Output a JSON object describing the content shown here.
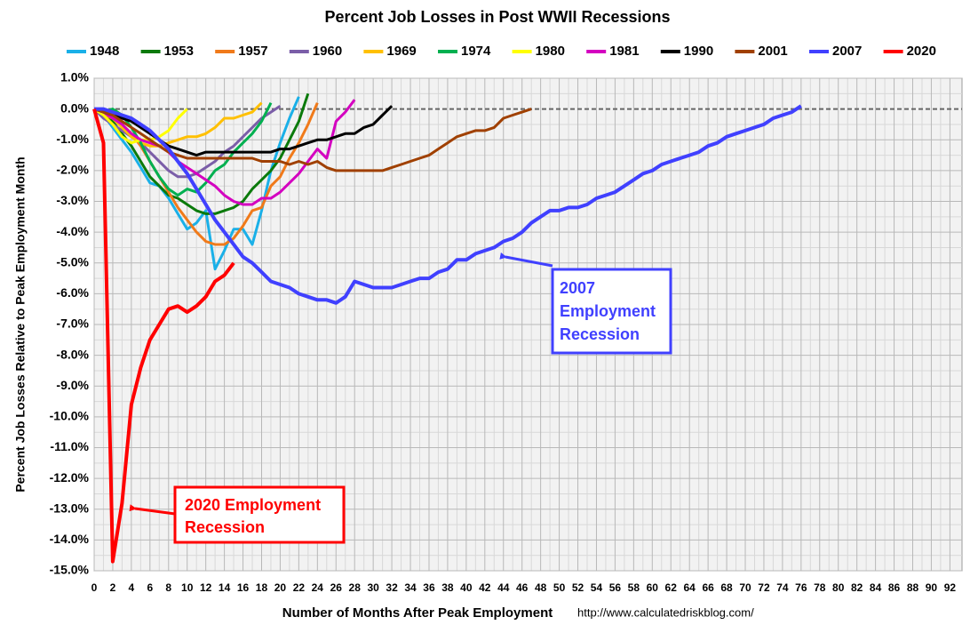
{
  "chart_data": {
    "type": "line",
    "title": "Percent Job Losses in Post WWII Recessions",
    "xlabel": "Number of Months After Peak Employment",
    "ylabel": "Percent Job Losses Relative to Peak Employment Month",
    "source": "http://www.calculatedriskblog.com/",
    "xlim": [
      0,
      93.3
    ],
    "ylim": [
      -15,
      1
    ],
    "xticks": [
      0,
      2,
      4,
      6,
      8,
      10,
      12,
      14,
      16,
      18,
      20,
      22,
      24,
      26,
      28,
      30,
      32,
      34,
      36,
      38,
      40,
      42,
      44,
      46,
      48,
      50,
      52,
      54,
      56,
      58,
      60,
      62,
      64,
      66,
      68,
      70,
      72,
      74,
      76,
      78,
      80,
      82,
      84,
      86,
      88,
      90,
      92
    ],
    "yticks": [
      {
        "value": 1,
        "label": "1.0%"
      },
      {
        "value": 0,
        "label": "0.0%"
      },
      {
        "value": -1,
        "label": "-1.0%"
      },
      {
        "value": -2,
        "label": "-2.0%"
      },
      {
        "value": -3,
        "label": "-3.0%"
      },
      {
        "value": -4,
        "label": "-4.0%"
      },
      {
        "value": -5,
        "label": "-5.0%"
      },
      {
        "value": -6,
        "label": "-6.0%"
      },
      {
        "value": -7,
        "label": "-7.0%"
      },
      {
        "value": -8,
        "label": "-8.0%"
      },
      {
        "value": -9,
        "label": "-9.0%"
      },
      {
        "value": -10,
        "label": "-10.0%"
      },
      {
        "value": -11,
        "label": "-11.0%"
      },
      {
        "value": -12,
        "label": "-12.0%"
      },
      {
        "value": -13,
        "label": "-13.0%"
      },
      {
        "value": -14,
        "label": "-14.0%"
      },
      {
        "value": -15,
        "label": "-15.0%"
      }
    ],
    "grid": true,
    "legend": "top",
    "series": [
      {
        "name": "1948",
        "color": "#1ab0e8",
        "x": [
          0,
          1,
          2,
          3,
          4,
          5,
          6,
          7,
          8,
          9,
          10,
          11,
          12,
          13,
          14,
          15,
          16,
          17,
          18,
          19,
          20,
          21,
          22
        ],
        "values": [
          0,
          -0.2,
          -0.6,
          -1.0,
          -1.4,
          -1.9,
          -2.4,
          -2.5,
          -2.9,
          -3.4,
          -3.9,
          -3.7,
          -3.3,
          -5.2,
          -4.6,
          -3.9,
          -3.9,
          -4.4,
          -3.3,
          -2.0,
          -1.1,
          -0.3,
          0.4
        ]
      },
      {
        "name": "1953",
        "color": "#0b7a0b",
        "x": [
          0,
          1,
          2,
          3,
          4,
          5,
          6,
          7,
          8,
          9,
          10,
          11,
          12,
          13,
          14,
          15,
          16,
          17,
          18,
          19,
          20,
          21,
          22,
          23
        ],
        "values": [
          0,
          -0.1,
          -0.4,
          -0.8,
          -1.2,
          -1.7,
          -2.2,
          -2.5,
          -2.8,
          -2.9,
          -3.1,
          -3.3,
          -3.4,
          -3.4,
          -3.3,
          -3.2,
          -3.0,
          -2.6,
          -2.3,
          -2.0,
          -1.6,
          -1.0,
          -0.4,
          0.5
        ]
      },
      {
        "name": "1957",
        "color": "#f07a1a",
        "x": [
          0,
          1,
          2,
          3,
          4,
          5,
          6,
          7,
          8,
          9,
          10,
          11,
          12,
          13,
          14,
          15,
          16,
          17,
          18,
          19,
          20,
          21,
          22,
          23,
          24
        ],
        "values": [
          0,
          -0.2,
          -0.3,
          -0.5,
          -0.8,
          -1.2,
          -1.7,
          -2.2,
          -2.7,
          -3.2,
          -3.6,
          -4.0,
          -4.3,
          -4.4,
          -4.4,
          -4.2,
          -3.8,
          -3.3,
          -3.2,
          -2.5,
          -2.2,
          -1.6,
          -1.1,
          -0.5,
          0.2
        ]
      },
      {
        "name": "1960",
        "color": "#7b5ea8",
        "x": [
          0,
          1,
          2,
          3,
          4,
          5,
          6,
          7,
          8,
          9,
          10,
          11,
          12,
          13,
          14,
          15,
          16,
          17,
          18,
          19,
          20
        ],
        "values": [
          0,
          -0.3,
          -0.5,
          -0.7,
          -0.9,
          -1.1,
          -1.4,
          -1.7,
          -2.0,
          -2.2,
          -2.2,
          -2.1,
          -1.9,
          -1.7,
          -1.4,
          -1.2,
          -0.9,
          -0.6,
          -0.3,
          -0.1,
          0.1
        ]
      },
      {
        "name": "1969",
        "color": "#ffc000",
        "x": [
          0,
          1,
          2,
          3,
          4,
          5,
          6,
          7,
          8,
          9,
          10,
          11,
          12,
          13,
          14,
          15,
          16,
          17,
          18
        ],
        "values": [
          0,
          -0.1,
          -0.3,
          -0.6,
          -0.9,
          -1.1,
          -1.2,
          -1.2,
          -1.1,
          -1.0,
          -0.9,
          -0.9,
          -0.8,
          -0.6,
          -0.3,
          -0.3,
          -0.2,
          -0.1,
          0.2
        ]
      },
      {
        "name": "1974",
        "color": "#00b050",
        "x": [
          0,
          1,
          2,
          3,
          4,
          5,
          6,
          7,
          8,
          9,
          10,
          11,
          12,
          13,
          14,
          15,
          16,
          17,
          18,
          19
        ],
        "values": [
          0,
          -0.1,
          0,
          -0.2,
          -0.6,
          -1.1,
          -1.7,
          -2.2,
          -2.6,
          -2.8,
          -2.6,
          -2.7,
          -2.4,
          -2.0,
          -1.8,
          -1.4,
          -1.1,
          -0.8,
          -0.4,
          0.2
        ]
      },
      {
        "name": "1980",
        "color": "#ffff00",
        "x": [
          0,
          1,
          2,
          3,
          4,
          5,
          6,
          7,
          8,
          9,
          10
        ],
        "values": [
          0,
          -0.2,
          -0.5,
          -0.9,
          -1.1,
          -1.0,
          -1.0,
          -0.9,
          -0.7,
          -0.3,
          0.0
        ]
      },
      {
        "name": "1981",
        "color": "#d400c0",
        "x": [
          0,
          1,
          2,
          3,
          4,
          5,
          6,
          7,
          8,
          9,
          10,
          11,
          12,
          13,
          14,
          15,
          16,
          17,
          18,
          19,
          20,
          21,
          22,
          23,
          24,
          25,
          26,
          27,
          28
        ],
        "values": [
          0,
          -0.1,
          -0.3,
          -0.5,
          -0.8,
          -1.0,
          -1.1,
          -1.2,
          -1.4,
          -1.7,
          -1.9,
          -2.1,
          -2.3,
          -2.5,
          -2.8,
          -3.0,
          -3.1,
          -3.1,
          -2.9,
          -2.9,
          -2.7,
          -2.4,
          -2.1,
          -1.7,
          -1.3,
          -1.6,
          -0.4,
          -0.1,
          0.3
        ]
      },
      {
        "name": "1990",
        "color": "#000000",
        "x": [
          0,
          1,
          2,
          3,
          4,
          5,
          6,
          7,
          8,
          9,
          10,
          11,
          12,
          13,
          14,
          15,
          16,
          17,
          18,
          19,
          20,
          21,
          22,
          23,
          24,
          25,
          26,
          27,
          28,
          29,
          30,
          31,
          32
        ],
        "values": [
          0,
          -0.1,
          -0.2,
          -0.3,
          -0.4,
          -0.6,
          -0.8,
          -1.0,
          -1.2,
          -1.3,
          -1.4,
          -1.5,
          -1.4,
          -1.4,
          -1.4,
          -1.4,
          -1.4,
          -1.4,
          -1.4,
          -1.4,
          -1.3,
          -1.3,
          -1.2,
          -1.1,
          -1.0,
          -1.0,
          -0.9,
          -0.8,
          -0.8,
          -0.6,
          -0.5,
          -0.2,
          0.1
        ]
      },
      {
        "name": "2001",
        "color": "#a04000",
        "x": [
          0,
          1,
          2,
          3,
          4,
          5,
          6,
          7,
          8,
          9,
          10,
          11,
          12,
          13,
          14,
          15,
          16,
          17,
          18,
          19,
          20,
          21,
          22,
          23,
          24,
          25,
          26,
          27,
          28,
          29,
          30,
          31,
          32,
          33,
          34,
          35,
          36,
          37,
          38,
          39,
          40,
          41,
          42,
          43,
          44,
          45,
          46,
          47
        ],
        "values": [
          0,
          -0.1,
          -0.2,
          -0.4,
          -0.6,
          -0.8,
          -1.0,
          -1.2,
          -1.4,
          -1.5,
          -1.6,
          -1.6,
          -1.6,
          -1.6,
          -1.6,
          -1.6,
          -1.6,
          -1.6,
          -1.7,
          -1.7,
          -1.7,
          -1.8,
          -1.7,
          -1.8,
          -1.7,
          -1.9,
          -2.0,
          -2.0,
          -2.0,
          -2.0,
          -2.0,
          -2.0,
          -1.9,
          -1.8,
          -1.7,
          -1.6,
          -1.5,
          -1.3,
          -1.1,
          -0.9,
          -0.8,
          -0.7,
          -0.7,
          -0.6,
          -0.3,
          -0.2,
          -0.1,
          0
        ]
      },
      {
        "name": "2007",
        "color": "#4040ff",
        "x": [
          0,
          1,
          2,
          3,
          4,
          5,
          6,
          7,
          8,
          9,
          10,
          11,
          12,
          13,
          14,
          15,
          16,
          17,
          18,
          19,
          20,
          21,
          22,
          23,
          24,
          25,
          26,
          27,
          28,
          29,
          30,
          31,
          32,
          33,
          34,
          35,
          36,
          37,
          38,
          39,
          40,
          41,
          42,
          43,
          44,
          45,
          46,
          47,
          48,
          49,
          50,
          51,
          52,
          53,
          54,
          55,
          56,
          57,
          58,
          59,
          60,
          61,
          62,
          63,
          64,
          65,
          66,
          67,
          68,
          69,
          70,
          71,
          72,
          73,
          74,
          75,
          76
        ],
        "values": [
          0,
          0,
          -0.1,
          -0.2,
          -0.3,
          -0.5,
          -0.7,
          -1.0,
          -1.3,
          -1.7,
          -2.1,
          -2.6,
          -3.1,
          -3.6,
          -4.0,
          -4.4,
          -4.8,
          -5.0,
          -5.3,
          -5.6,
          -5.7,
          -5.8,
          -6.0,
          -6.1,
          -6.2,
          -6.2,
          -6.3,
          -6.1,
          -5.6,
          -5.7,
          -5.8,
          -5.8,
          -5.8,
          -5.7,
          -5.6,
          -5.5,
          -5.5,
          -5.3,
          -5.2,
          -4.9,
          -4.9,
          -4.7,
          -4.6,
          -4.5,
          -4.3,
          -4.2,
          -4.0,
          -3.7,
          -3.5,
          -3.3,
          -3.3,
          -3.2,
          -3.2,
          -3.1,
          -2.9,
          -2.8,
          -2.7,
          -2.5,
          -2.3,
          -2.1,
          -2.0,
          -1.8,
          -1.7,
          -1.6,
          -1.5,
          -1.4,
          -1.2,
          -1.1,
          -0.9,
          -0.8,
          -0.7,
          -0.6,
          -0.5,
          -0.3,
          -0.2,
          -0.1,
          0.1
        ]
      },
      {
        "name": "2020",
        "color": "#ff0000",
        "x": [
          0,
          1,
          2,
          3,
          4,
          5,
          6,
          7,
          8,
          9,
          10,
          11,
          12,
          13,
          14,
          15
        ],
        "values": [
          0,
          -1.1,
          -14.7,
          -12.8,
          -9.6,
          -8.4,
          -7.5,
          -7.0,
          -6.5,
          -6.4,
          -6.6,
          -6.4,
          -6.1,
          -5.6,
          -5.4,
          -5.0
        ]
      }
    ],
    "annotations": [
      {
        "lines": [
          "2007",
          "Employment",
          "Recession"
        ],
        "color": "#4040ff"
      },
      {
        "lines": [
          "2020 Employment",
          "Recession"
        ],
        "color": "#ff0000"
      }
    ]
  }
}
